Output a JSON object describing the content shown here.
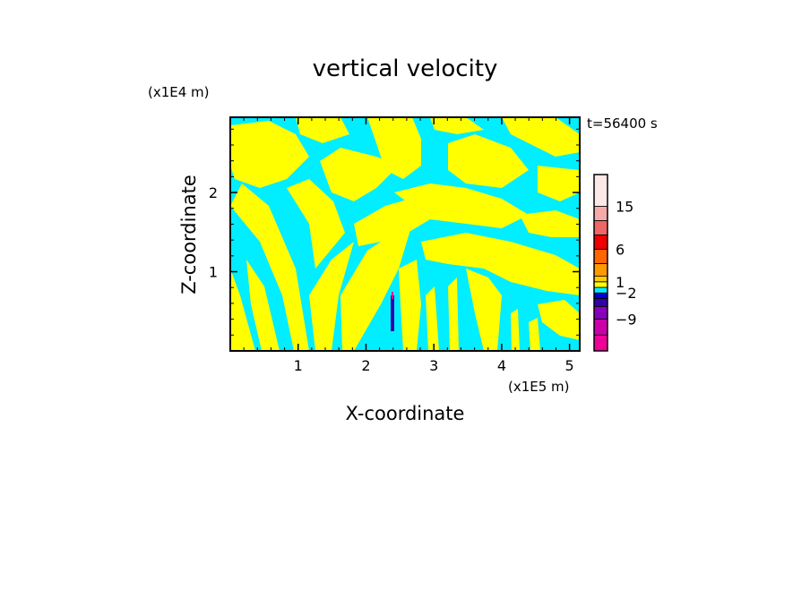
{
  "chart_data": {
    "type": "heatmap",
    "title": "vertical velocity",
    "xlabel": "X-coordinate",
    "ylabel": "Z-coordinate",
    "x_unit_label": "(x1E5 m)",
    "y_unit_label": "(x1E4 m)",
    "time_label": "t=56400 s",
    "xlim": [
      0,
      5.15
    ],
    "ylim": [
      0,
      2.95
    ],
    "x_ticks": [
      1,
      2,
      3,
      4,
      5
    ],
    "y_ticks": [
      1,
      2
    ],
    "x_tick_labels": [
      "1",
      "2",
      "3",
      "4",
      "5"
    ],
    "y_tick_labels": [
      "1",
      "2"
    ],
    "dominant_colors": {
      "positive_small": "#ffff00",
      "negative_small": "#00eeff"
    },
    "colorbar": {
      "bands_bottom_to_top": [
        {
          "color": "#ee0099"
        },
        {
          "color": "#cc00aa"
        },
        {
          "color": "#8800bb"
        },
        {
          "color": "#3300aa"
        },
        {
          "color": "#0000cc"
        },
        {
          "color": "#00eeff"
        },
        {
          "color": "#ffff00"
        },
        {
          "color": "#ffcc00"
        },
        {
          "color": "#ff9900"
        },
        {
          "color": "#ff6600"
        },
        {
          "color": "#ee0000"
        },
        {
          "color": "#ee6666"
        },
        {
          "color": "#f4aaaa"
        },
        {
          "color": "#fde8e8"
        }
      ],
      "tick_labels": [
        "-9",
        "-2",
        "1",
        "6",
        "15"
      ],
      "tick_band_index": [
        1,
        4,
        6,
        9,
        12
      ]
    }
  }
}
